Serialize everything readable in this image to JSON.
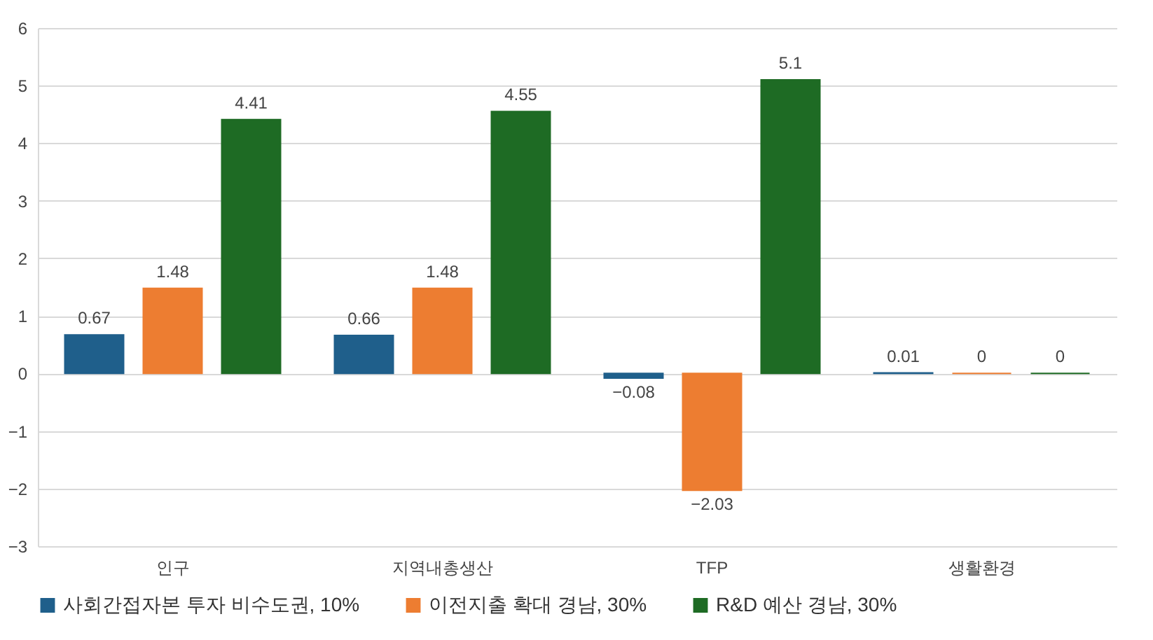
{
  "chart_data": {
    "type": "bar",
    "categories": [
      "인구",
      "지역내총생산",
      "TFP",
      "생활환경"
    ],
    "series": [
      {
        "name": "사회간접자본 투자 비수도권, 10%",
        "color": "#1f5f8b",
        "values": [
          0.67,
          0.66,
          -0.08,
          0.01
        ]
      },
      {
        "name": "이전지출 확대 경남, 30%",
        "color": "#ed7d31",
        "values": [
          1.48,
          1.48,
          -2.03,
          0
        ]
      },
      {
        "name": "R&D 예산 경남, 30%",
        "color": "#1e6b24",
        "values": [
          4.41,
          4.55,
          5.1,
          0
        ]
      }
    ],
    "ylim": [
      -3,
      6
    ],
    "yticks": [
      -3,
      -2,
      -1,
      0,
      1,
      2,
      3,
      4,
      5,
      6
    ],
    "grid": "y",
    "legend": "bottom",
    "data_labels": true
  }
}
